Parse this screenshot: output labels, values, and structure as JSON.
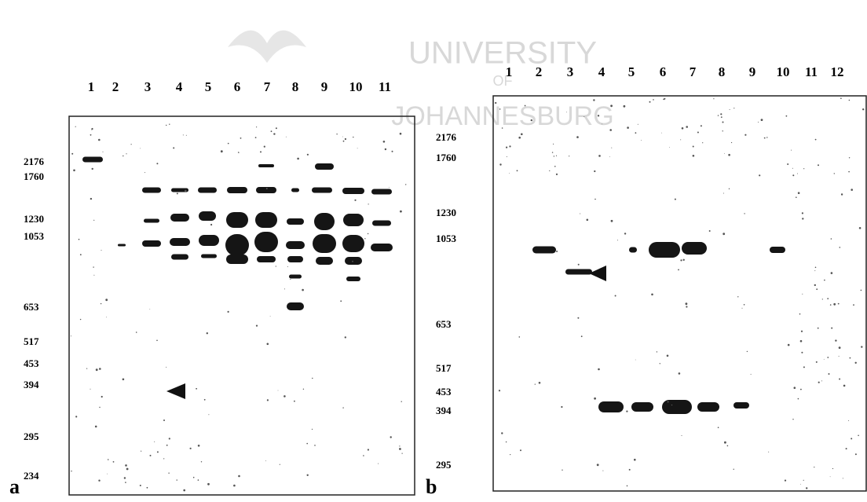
{
  "watermark": {
    "line1": "UNIVERSITY",
    "line2": "OF",
    "line3": "JOHANNESBURG"
  },
  "panel_a": {
    "label": "a",
    "lanes": [
      "1",
      "2",
      "3",
      "4",
      "5",
      "6",
      "7",
      "8",
      "9",
      "10",
      "11"
    ],
    "markers": [
      "2176",
      "1760",
      "1230",
      "1053",
      "653",
      "517",
      "453",
      "394",
      "295",
      "234"
    ]
  },
  "panel_b": {
    "label": "b",
    "lanes": [
      "1",
      "2",
      "3",
      "4",
      "5",
      "6",
      "7",
      "8",
      "9",
      "10",
      "11",
      "12"
    ],
    "markers": [
      "2176",
      "1760",
      "1230",
      "1053",
      "653",
      "517",
      "453",
      "394",
      "295"
    ]
  }
}
